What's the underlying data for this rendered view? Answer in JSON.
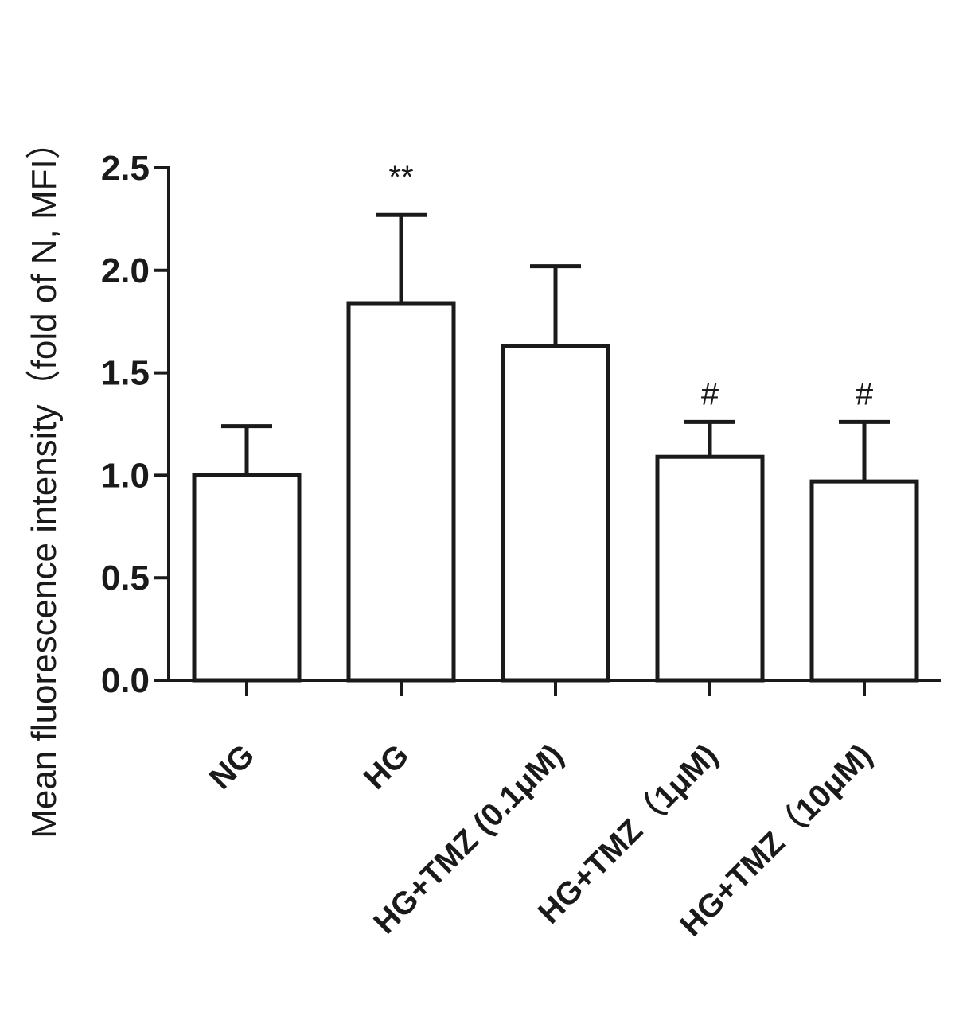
{
  "chart_data": {
    "type": "bar",
    "title": "",
    "xlabel": "",
    "ylabel": "Mean fluorescence intensity（fold of N, MFI）",
    "ylim": [
      0,
      2.5
    ],
    "yticks": [
      "0.0",
      "0.5",
      "1.0",
      "1.5",
      "2.0",
      "2.5"
    ],
    "ytick_values": [
      0,
      0.5,
      1.0,
      1.5,
      2.0,
      2.5
    ],
    "categories": [
      "NG",
      "HG",
      "HG+TMZ (0.1μM)",
      "HG+TMZ（1μM)",
      "HG+TMZ（10μM)"
    ],
    "values": [
      1.0,
      1.84,
      1.63,
      1.09,
      0.97
    ],
    "error": [
      0.24,
      0.43,
      0.39,
      0.17,
      0.29
    ],
    "annotations": [
      "",
      "**",
      "",
      "#",
      "#"
    ],
    "grid": false,
    "legend": "none",
    "colors": {
      "bar_fill": "#ffffff",
      "bar_stroke": "#1a1a1a",
      "text": "#1a1a1a"
    }
  }
}
